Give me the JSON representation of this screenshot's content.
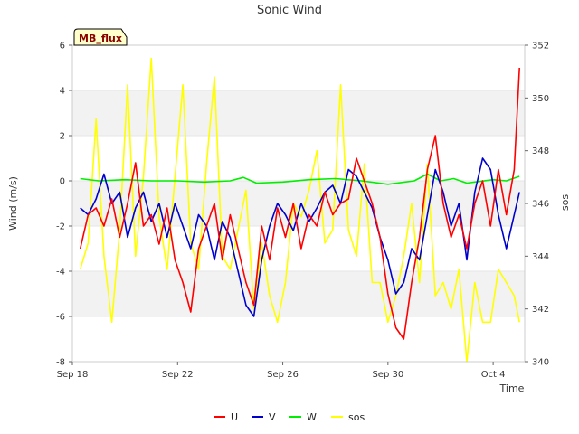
{
  "chart_data": {
    "type": "line",
    "title": "Sonic Wind",
    "badge": "MB_flux",
    "xlabel": "Time",
    "ylabel_left": "Wind (m/s)",
    "ylabel_right": "sos",
    "xlim": [
      0,
      17.2
    ],
    "ylim_left": [
      -8,
      6
    ],
    "ylim_right": [
      340,
      352
    ],
    "x_ticks": [
      {
        "value": 0,
        "label": "Sep 18"
      },
      {
        "value": 4,
        "label": "Sep 22"
      },
      {
        "value": 8,
        "label": "Sep 26"
      },
      {
        "value": 12,
        "label": "Sep 30"
      },
      {
        "value": 16,
        "label": "Oct 4"
      }
    ],
    "y_ticks_left": [
      -8,
      -6,
      -4,
      -2,
      0,
      2,
      4,
      6
    ],
    "y_ticks_right": [
      340,
      342,
      344,
      346,
      348,
      350,
      352
    ],
    "shaded_bands_left": [
      [
        -6,
        -4
      ],
      [
        -2,
        0
      ],
      [
        2,
        4
      ]
    ],
    "series": [
      {
        "name": "U",
        "axis": "left",
        "color": "#ff0000",
        "x": [
          0.3,
          0.6,
          0.9,
          1.2,
          1.5,
          1.8,
          2.1,
          2.4,
          2.7,
          3.0,
          3.3,
          3.6,
          3.9,
          4.2,
          4.5,
          4.8,
          5.1,
          5.4,
          5.7,
          6.0,
          6.3,
          6.6,
          6.9,
          7.2,
          7.5,
          7.8,
          8.1,
          8.4,
          8.7,
          9.0,
          9.3,
          9.6,
          9.9,
          10.2,
          10.5,
          10.8,
          11.1,
          11.4,
          11.7,
          12.0,
          12.3,
          12.6,
          12.9,
          13.2,
          13.5,
          13.8,
          14.1,
          14.4,
          14.7,
          15.0,
          15.3,
          15.6,
          15.9,
          16.2,
          16.5,
          16.8,
          17.0
        ],
        "values": [
          -3.0,
          -1.5,
          -1.2,
          -2.0,
          -0.8,
          -2.5,
          -1.0,
          0.8,
          -2.0,
          -1.5,
          -2.8,
          -1.2,
          -3.5,
          -4.5,
          -5.8,
          -3.0,
          -2.0,
          -1.0,
          -3.5,
          -1.5,
          -3.0,
          -4.5,
          -5.5,
          -2.0,
          -3.5,
          -1.2,
          -2.5,
          -1.0,
          -3.0,
          -1.5,
          -2.0,
          -0.5,
          -1.5,
          -1.0,
          -0.8,
          1.0,
          0.0,
          -1.0,
          -2.5,
          -5.0,
          -6.5,
          -7.0,
          -4.5,
          -2.5,
          0.5,
          2.0,
          -1.0,
          -2.5,
          -1.5,
          -3.0,
          -1.0,
          0.0,
          -2.0,
          0.5,
          -1.5,
          0.5,
          5.0
        ]
      },
      {
        "name": "V",
        "axis": "left",
        "color": "#0000cc",
        "x": [
          0.3,
          0.6,
          0.9,
          1.2,
          1.5,
          1.8,
          2.1,
          2.4,
          2.7,
          3.0,
          3.3,
          3.6,
          3.9,
          4.2,
          4.5,
          4.8,
          5.1,
          5.4,
          5.7,
          6.0,
          6.3,
          6.6,
          6.9,
          7.2,
          7.5,
          7.8,
          8.1,
          8.4,
          8.7,
          9.0,
          9.3,
          9.6,
          9.9,
          10.2,
          10.5,
          10.8,
          11.1,
          11.4,
          11.7,
          12.0,
          12.3,
          12.6,
          12.9,
          13.2,
          13.5,
          13.8,
          14.1,
          14.4,
          14.7,
          15.0,
          15.3,
          15.6,
          15.9,
          16.2,
          16.5,
          16.8,
          17.0
        ],
        "values": [
          -1.2,
          -1.5,
          -0.8,
          0.3,
          -1.0,
          -0.5,
          -2.5,
          -1.2,
          -0.5,
          -1.8,
          -1.0,
          -2.5,
          -1.0,
          -2.0,
          -3.0,
          -1.5,
          -2.0,
          -3.5,
          -1.8,
          -2.5,
          -4.0,
          -5.5,
          -6.0,
          -3.5,
          -2.0,
          -1.0,
          -1.5,
          -2.2,
          -1.0,
          -1.8,
          -1.2,
          -0.5,
          -0.2,
          -1.0,
          0.5,
          0.2,
          -0.5,
          -1.2,
          -2.5,
          -3.5,
          -5.0,
          -4.5,
          -3.0,
          -3.5,
          -1.5,
          0.5,
          -0.5,
          -2.0,
          -1.0,
          -3.5,
          -0.5,
          1.0,
          0.5,
          -1.5,
          -3.0,
          -1.5,
          -0.5
        ]
      },
      {
        "name": "W",
        "axis": "left",
        "color": "#00ee00",
        "x": [
          0.3,
          1.0,
          2.0,
          3.0,
          4.0,
          5.0,
          6.0,
          6.5,
          7.0,
          8.0,
          9.0,
          10.0,
          11.0,
          12.0,
          13.0,
          13.5,
          14.0,
          14.5,
          15.0,
          16.0,
          16.5,
          17.0
        ],
        "values": [
          0.1,
          0.0,
          0.05,
          0.0,
          0.0,
          -0.05,
          0.0,
          0.15,
          -0.1,
          -0.05,
          0.05,
          0.1,
          0.0,
          -0.15,
          0.0,
          0.3,
          0.0,
          0.1,
          -0.1,
          0.05,
          0.0,
          0.2
        ]
      },
      {
        "name": "sos",
        "axis": "right",
        "color": "#ffff00",
        "x": [
          0.3,
          0.6,
          0.9,
          1.2,
          1.5,
          1.8,
          2.1,
          2.4,
          2.7,
          3.0,
          3.3,
          3.6,
          3.9,
          4.2,
          4.5,
          4.8,
          5.1,
          5.4,
          5.7,
          6.0,
          6.3,
          6.6,
          6.9,
          7.2,
          7.5,
          7.8,
          8.1,
          8.4,
          8.7,
          9.0,
          9.3,
          9.6,
          9.9,
          10.2,
          10.5,
          10.8,
          11.1,
          11.4,
          11.7,
          12.0,
          12.3,
          12.6,
          12.9,
          13.2,
          13.5,
          13.8,
          14.1,
          14.4,
          14.7,
          15.0,
          15.3,
          15.6,
          15.9,
          16.2,
          16.5,
          16.8,
          17.0
        ],
        "values": [
          343.5,
          344.5,
          349.2,
          344.0,
          341.5,
          345.0,
          350.5,
          344.0,
          347.0,
          351.5,
          345.5,
          343.5,
          347.0,
          350.5,
          344.5,
          343.5,
          347.5,
          350.8,
          344.0,
          343.5,
          345.0,
          346.5,
          342.0,
          344.5,
          342.5,
          341.5,
          343.0,
          346.0,
          345.5,
          346.5,
          348.0,
          344.5,
          345.0,
          350.5,
          345.0,
          344.0,
          347.5,
          343.0,
          343.0,
          341.5,
          342.5,
          344.0,
          346.0,
          343.0,
          347.5,
          342.5,
          343.0,
          342.0,
          343.5,
          340.0,
          343.0,
          341.5,
          341.5,
          343.5,
          343.0,
          342.5,
          341.5
        ]
      }
    ]
  }
}
